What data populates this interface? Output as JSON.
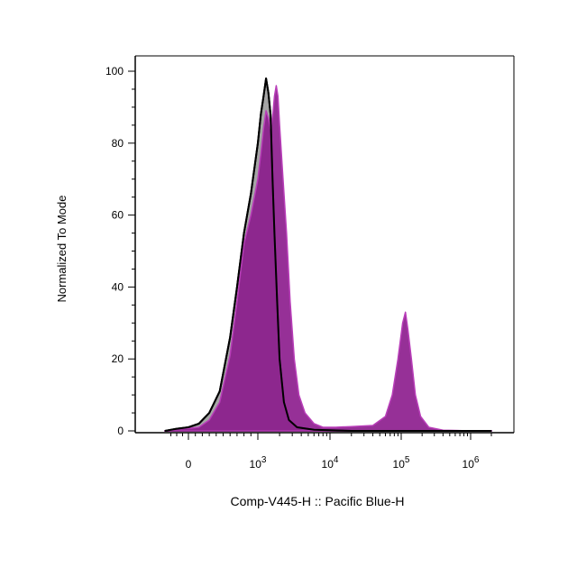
{
  "chart_data": {
    "type": "area",
    "xlabel": "Comp-V445-H :: Pacific Blue-H",
    "ylabel": "Normalized To Mode",
    "x_scale": "biexponential",
    "ylim": [
      0,
      100
    ],
    "yticks": [
      0,
      20,
      40,
      60,
      80,
      100
    ],
    "xtick_labels": [
      {
        "base": "0",
        "exp": ""
      },
      {
        "base": "10",
        "exp": "3"
      },
      {
        "base": "10",
        "exp": "4"
      },
      {
        "base": "10",
        "exp": "5"
      },
      {
        "base": "10",
        "exp": "6"
      }
    ],
    "grid": false,
    "legend": "none",
    "series": [
      {
        "color": "#a0a0a0",
        "stroke": "#000000",
        "points": [
          [
            -400,
            0
          ],
          [
            -200,
            0.6
          ],
          [
            0,
            1.0
          ],
          [
            150,
            2
          ],
          [
            300,
            5
          ],
          [
            450,
            11
          ],
          [
            600,
            26
          ],
          [
            700,
            40
          ],
          [
            800,
            55
          ],
          [
            900,
            66
          ],
          [
            1000,
            80
          ],
          [
            1100,
            88
          ],
          [
            1200,
            93
          ],
          [
            1300,
            98
          ],
          [
            1400,
            94
          ],
          [
            1500,
            88
          ],
          [
            1600,
            70
          ],
          [
            1700,
            55
          ],
          [
            1850,
            36
          ],
          [
            2000,
            20
          ],
          [
            2300,
            8
          ],
          [
            2700,
            3
          ],
          [
            3500,
            1
          ],
          [
            6000,
            0.3
          ],
          [
            20000,
            0
          ],
          [
            100000,
            0
          ],
          [
            1000000,
            0
          ],
          [
            2000000,
            0
          ]
        ]
      },
      {
        "color": "#8b1a8c",
        "stroke": "#b83db8",
        "points": [
          [
            -400,
            0
          ],
          [
            -200,
            0.6
          ],
          [
            0,
            0.7
          ],
          [
            150,
            1
          ],
          [
            300,
            3
          ],
          [
            450,
            8
          ],
          [
            600,
            21
          ],
          [
            700,
            36
          ],
          [
            800,
            52
          ],
          [
            900,
            60
          ],
          [
            1000,
            70
          ],
          [
            1100,
            77
          ],
          [
            1200,
            84
          ],
          [
            1300,
            89
          ],
          [
            1400,
            87
          ],
          [
            1500,
            84
          ],
          [
            1600,
            87
          ],
          [
            1700,
            93
          ],
          [
            1800,
            96
          ],
          [
            1900,
            93
          ],
          [
            2000,
            85
          ],
          [
            2200,
            72
          ],
          [
            2500,
            55
          ],
          [
            2800,
            36
          ],
          [
            3200,
            20
          ],
          [
            3700,
            10
          ],
          [
            4500,
            5
          ],
          [
            6000,
            2
          ],
          [
            8000,
            1
          ],
          [
            12000,
            1
          ],
          [
            20000,
            1.2
          ],
          [
            40000,
            1.5
          ],
          [
            60000,
            4
          ],
          [
            75000,
            10
          ],
          [
            90000,
            20
          ],
          [
            105000,
            30
          ],
          [
            115000,
            33
          ],
          [
            125000,
            28
          ],
          [
            140000,
            20
          ],
          [
            160000,
            10
          ],
          [
            190000,
            4
          ],
          [
            250000,
            1
          ],
          [
            400000,
            0.2
          ],
          [
            1000000,
            0
          ],
          [
            2000000,
            0
          ]
        ]
      }
    ]
  }
}
